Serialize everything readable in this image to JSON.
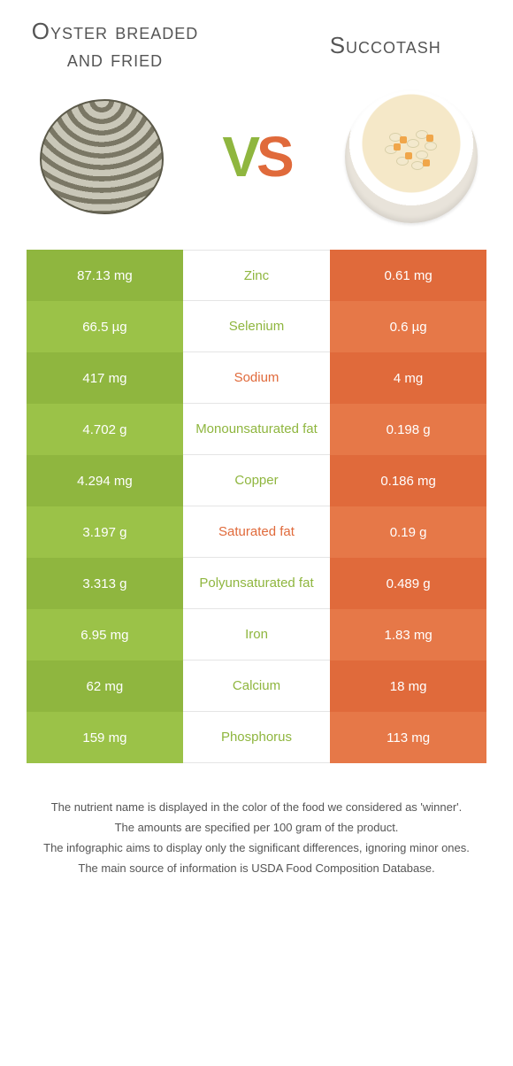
{
  "colors": {
    "left_bg_dark": "#8fb63f",
    "left_bg_light": "#9bc248",
    "right_bg_dark": "#e06a3b",
    "right_bg_light": "#e67848",
    "mid_text_left": "#8fb63f",
    "mid_text_right": "#e06a3b"
  },
  "titles": {
    "left": "Oyster breaded and fried",
    "right": "Succotash"
  },
  "vs": {
    "v": "V",
    "s": "S"
  },
  "rows": [
    {
      "left": "87.13 mg",
      "mid": "Zinc",
      "right": "0.61 mg",
      "winner": "left"
    },
    {
      "left": "66.5 µg",
      "mid": "Selenium",
      "right": "0.6 µg",
      "winner": "left"
    },
    {
      "left": "417 mg",
      "mid": "Sodium",
      "right": "4 mg",
      "winner": "right"
    },
    {
      "left": "4.702 g",
      "mid": "Monounsaturated fat",
      "right": "0.198 g",
      "winner": "left"
    },
    {
      "left": "4.294 mg",
      "mid": "Copper",
      "right": "0.186 mg",
      "winner": "left"
    },
    {
      "left": "3.197 g",
      "mid": "Saturated fat",
      "right": "0.19 g",
      "winner": "right"
    },
    {
      "left": "3.313 g",
      "mid": "Polyunsaturated fat",
      "right": "0.489 g",
      "winner": "left"
    },
    {
      "left": "6.95 mg",
      "mid": "Iron",
      "right": "1.83 mg",
      "winner": "left"
    },
    {
      "left": "62 mg",
      "mid": "Calcium",
      "right": "18 mg",
      "winner": "left"
    },
    {
      "left": "159 mg",
      "mid": "Phosphorus",
      "right": "113 mg",
      "winner": "left"
    }
  ],
  "footer": {
    "line1": "The nutrient name is displayed in the color of the food we considered as 'winner'.",
    "line2": "The amounts are specified per 100 gram of the product.",
    "line3": "The infographic aims to display only the significant differences, ignoring minor ones.",
    "line4": "The main source of information is USDA Food Composition Database."
  }
}
